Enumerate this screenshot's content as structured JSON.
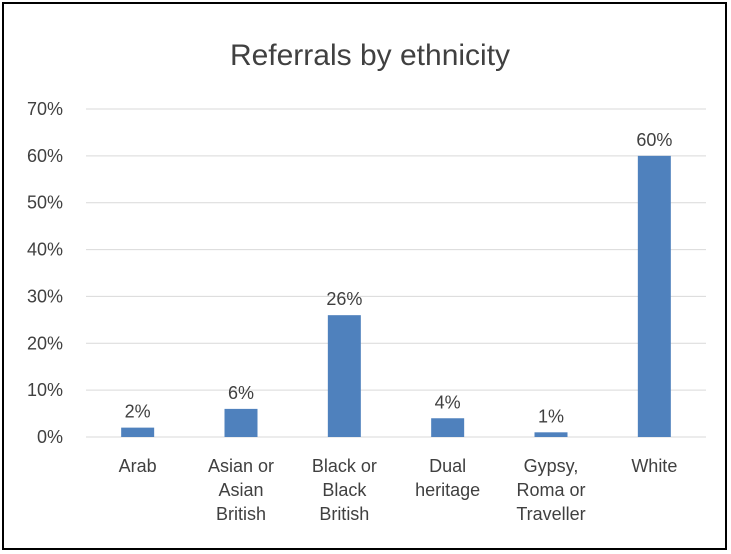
{
  "chart_data": {
    "type": "bar",
    "title": "Referrals by ethnicity",
    "xlabel": "",
    "ylabel": "",
    "categories": [
      [
        "Arab"
      ],
      [
        "Asian or",
        "Asian",
        "British"
      ],
      [
        "Black or",
        "Black",
        "British"
      ],
      [
        "Dual",
        "heritage"
      ],
      [
        "Gypsy,",
        "Roma or",
        "Traveller"
      ],
      [
        "White"
      ]
    ],
    "values": [
      2,
      6,
      26,
      4,
      1,
      60
    ],
    "value_labels": [
      "2%",
      "6%",
      "26%",
      "4%",
      "1%",
      "60%"
    ],
    "ylim": [
      0,
      70
    ],
    "yticks": [
      "0%",
      "10%",
      "20%",
      "30%",
      "40%",
      "50%",
      "60%",
      "70%"
    ],
    "grid": true,
    "legend": "none",
    "bar_color": "#4f81bd",
    "grid_color": "#d9d9d9"
  }
}
